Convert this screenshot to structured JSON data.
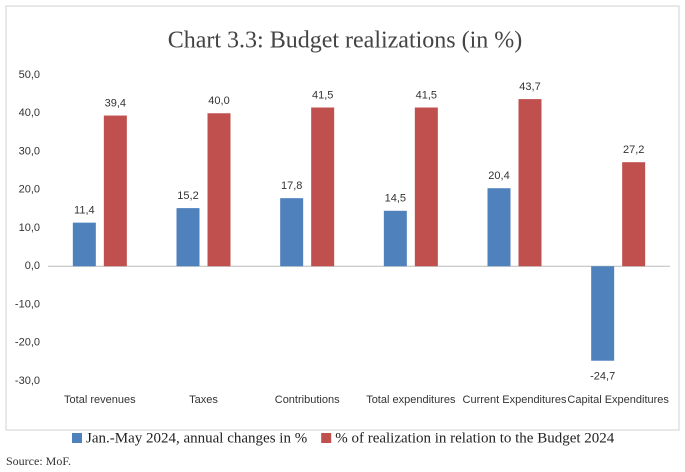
{
  "chart_data": {
    "type": "bar",
    "title": "Chart 3.3: Budget realizations (in %)",
    "categories": [
      "Total revenues",
      "Taxes",
      "Contributions",
      "Total expenditures",
      "Current Expenditures",
      "Capital Expenditures"
    ],
    "series": [
      {
        "name": "Jan.-May 2024, annual changes in %",
        "color": "#4f81bd",
        "values": [
          11.4,
          15.2,
          17.8,
          14.5,
          20.4,
          -24.7
        ],
        "value_labels": [
          "11,4",
          "15,2",
          "17,8",
          "14,5",
          "20,4",
          "-24,7"
        ]
      },
      {
        "name": "% of realization in relation to the Budget 2024",
        "color": "#c0504d",
        "values": [
          39.4,
          40.0,
          41.5,
          41.5,
          43.7,
          27.2
        ],
        "value_labels": [
          "39,4",
          "40,0",
          "41,5",
          "41,5",
          "43,7",
          "27,2"
        ]
      }
    ],
    "ylim": [
      -30,
      50
    ],
    "yticks": [
      {
        "value": -30,
        "label": "-30,0"
      },
      {
        "value": -20,
        "label": "-20,0"
      },
      {
        "value": -10,
        "label": "-10,0"
      },
      {
        "value": 0,
        "label": "0,0"
      },
      {
        "value": 10,
        "label": "10,0"
      },
      {
        "value": 20,
        "label": "20,0"
      },
      {
        "value": 30,
        "label": "30,0"
      },
      {
        "value": 40,
        "label": "40,0"
      },
      {
        "value": 50,
        "label": "50,0"
      }
    ],
    "grid": false,
    "legend": "bottom",
    "source": "Source: MoF."
  }
}
